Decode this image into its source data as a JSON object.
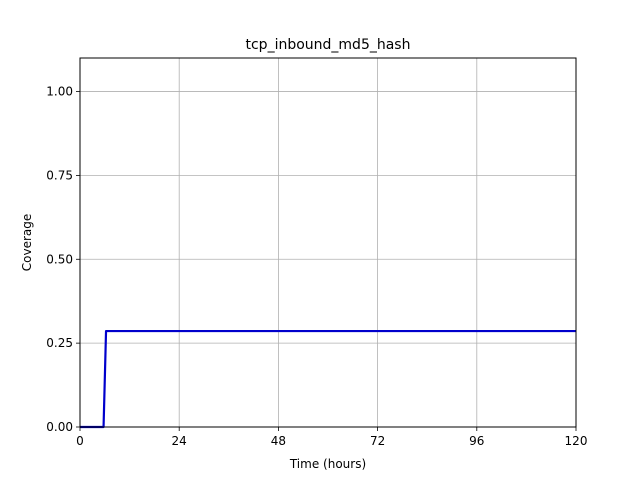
{
  "chart_data": {
    "type": "line",
    "title": "tcp_inbound_md5_hash",
    "xlabel": "Time (hours)",
    "ylabel": "Coverage",
    "xlim": [
      0,
      120
    ],
    "ylim": [
      0,
      1.1
    ],
    "x_ticks": [
      0,
      24,
      48,
      72,
      96,
      120
    ],
    "x_tick_labels": [
      "0",
      "24",
      "48",
      "72",
      "96",
      "120"
    ],
    "y_ticks": [
      0,
      0.25,
      0.5,
      0.75,
      1.0
    ],
    "y_tick_labels": [
      "0.00",
      "0.25",
      "0.50",
      "0.75",
      "1.00"
    ],
    "grid": true,
    "series": [
      {
        "color": "#0000cc",
        "x": [
          0,
          5.7,
          6.3,
          120
        ],
        "y": [
          0,
          0,
          0.286,
          0.286
        ]
      }
    ]
  }
}
